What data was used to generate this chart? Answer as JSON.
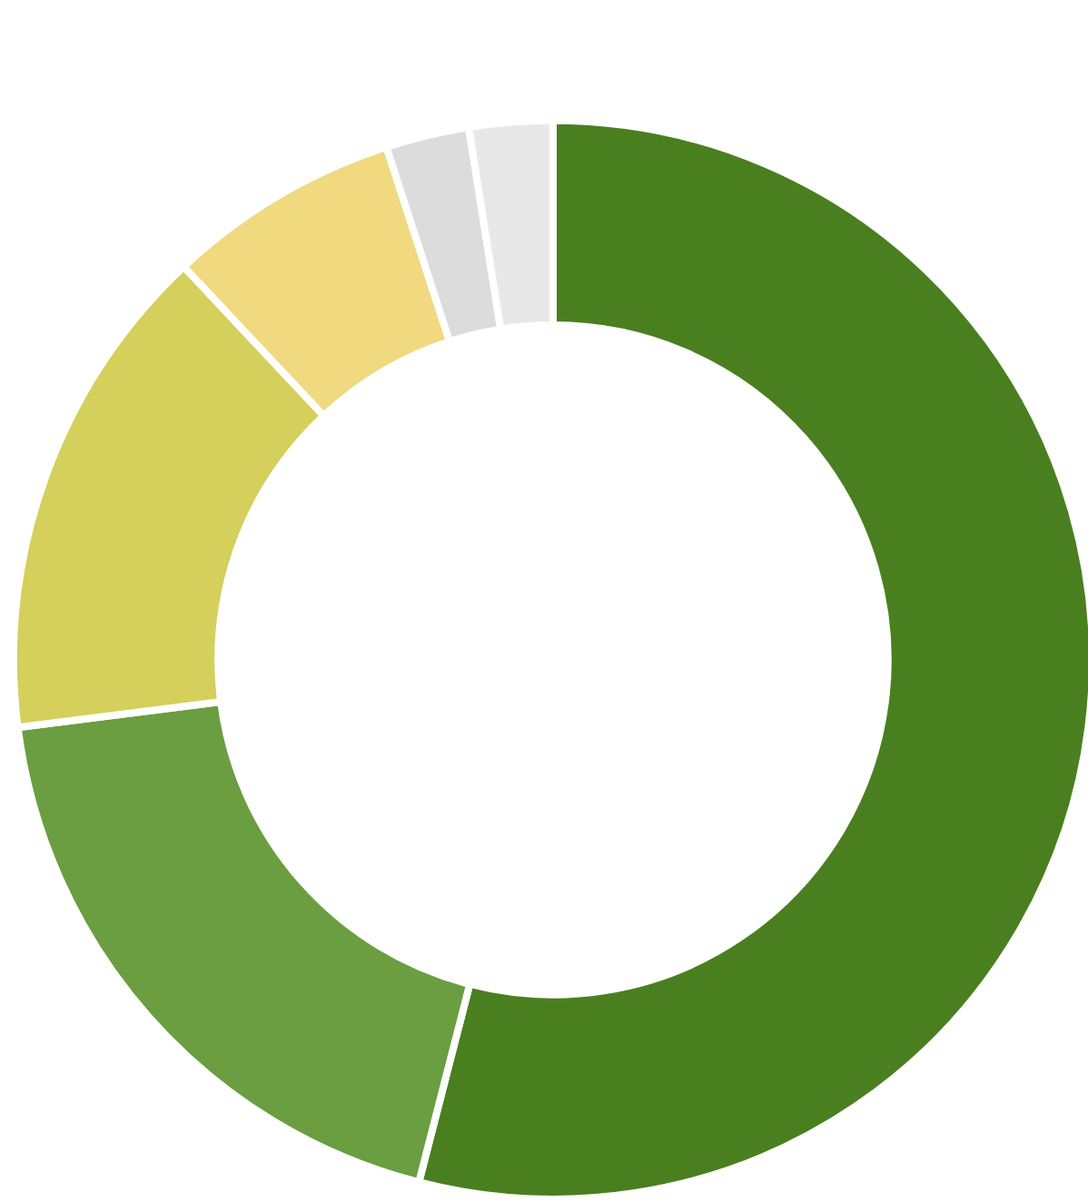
{
  "chart_data": {
    "type": "donut",
    "categories": [
      null,
      null,
      null,
      null,
      null,
      null
    ],
    "values": [
      54,
      19,
      15,
      7,
      2.5,
      2.5
    ],
    "colors": [
      "#4a7f20",
      "#6a9e40",
      "#d5cf5c",
      "#f0d97f",
      "#dcdcdc",
      "#e8e8e8"
    ]
  }
}
